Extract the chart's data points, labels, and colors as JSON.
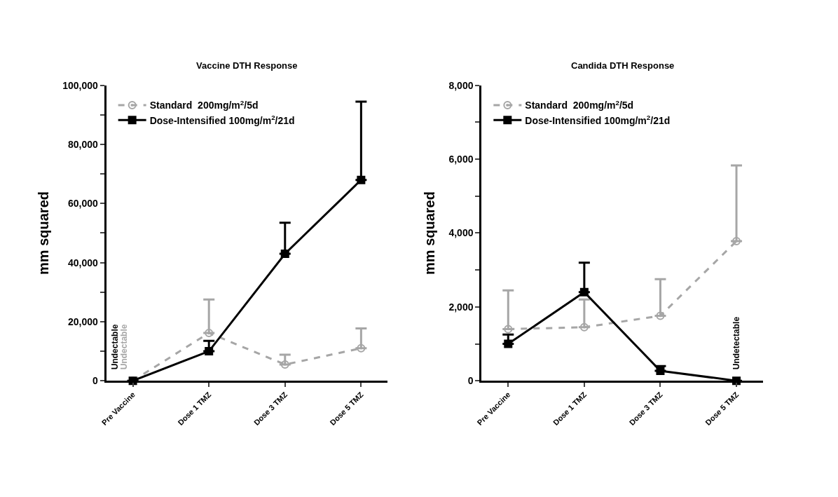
{
  "chart_data": [
    {
      "type": "line",
      "title": "Vaccine DTH Response",
      "ylabel": "mm squared",
      "categories": [
        "Pre Vaccine",
        "Dose 1 TMZ",
        "Dose 3 TMZ",
        "Dose 5 TMZ"
      ],
      "legend": "top left",
      "ylim": [
        0,
        100000
      ],
      "yticks": [
        {
          "value": 0,
          "label": "0"
        },
        {
          "value": 10000,
          "label": null
        },
        {
          "value": 20000,
          "label": "20,000"
        },
        {
          "value": 30000,
          "label": null
        },
        {
          "value": 40000,
          "label": "40,000"
        },
        {
          "value": 50000,
          "label": null
        },
        {
          "value": 60000,
          "label": "60,000"
        },
        {
          "value": 70000,
          "label": null
        },
        {
          "value": 80000,
          "label": "80,000"
        },
        {
          "value": 90000,
          "label": null
        },
        {
          "value": 100000,
          "label": "100,000"
        }
      ],
      "series": [
        {
          "name": "Standard  200mg/m$^{2}$/5d",
          "color": "#a6a6a6",
          "marker": "circle",
          "line_style": "dashed",
          "values": [
            0,
            16200,
            5500,
            11000
          ],
          "errors": [
            null,
            [
              16200,
              27500
            ],
            [
              5500,
              8800
            ],
            [
              11000,
              17700
            ]
          ]
        },
        {
          "name": "Dose-Intensified 100mg/m$^{2}$/21d",
          "color": "#000000",
          "marker": "square",
          "line_style": "solid",
          "values": [
            0,
            10000,
            43000,
            68000
          ],
          "errors": [
            null,
            [
              10000,
              13500
            ],
            [
              43000,
              53500
            ],
            [
              68000,
              94500
            ]
          ]
        }
      ],
      "annotations": [
        {
          "text": "Undectable",
          "x": "Pre Vaccine",
          "y": 0
        },
        {
          "text": "Undectable",
          "x": "Pre Vaccine",
          "y": 0
        }
      ]
    },
    {
      "type": "line",
      "title": "Candida DTH Response",
      "ylabel": "mm squared",
      "categories": [
        "Pre Vaccine",
        "Dose 1 TMZ",
        "Dose 3 TMZ",
        "Dose 5 TMZ"
      ],
      "legend": "top left",
      "ylim": [
        0,
        8000
      ],
      "yticks": [
        {
          "value": 0,
          "label": "0"
        },
        {
          "value": 1000,
          "label": null
        },
        {
          "value": 2000,
          "label": "2,000"
        },
        {
          "value": 3000,
          "label": null
        },
        {
          "value": 4000,
          "label": "4,000"
        },
        {
          "value": 5000,
          "label": null
        },
        {
          "value": 6000,
          "label": "6,000"
        },
        {
          "value": 7000,
          "label": null
        },
        {
          "value": 8000,
          "label": "8,000"
        }
      ],
      "series": [
        {
          "name": "Standard  200mg/m$^{2}$/5d",
          "color": "#a6a6a6",
          "marker": "circle",
          "line_style": "dashed",
          "values": [
            1400,
            1450,
            1760,
            3780
          ],
          "errors": [
            [
              1400,
              2450
            ],
            [
              1450,
              2200
            ],
            [
              1760,
              2750
            ],
            [
              3780,
              5830
            ]
          ]
        },
        {
          "name": "Dose-Intensified 100mg/m$^{2}$/21d",
          "color": "#000000",
          "marker": "square",
          "line_style": "solid",
          "values": [
            1000,
            2400,
            270,
            0
          ],
          "errors": [
            [
              1000,
              1250
            ],
            [
              2400,
              3200
            ],
            [
              270,
              400
            ],
            null
          ]
        }
      ],
      "annotations": [
        {
          "text": "Undetectable",
          "x": "Dose 5 TMZ",
          "y": 0
        }
      ]
    }
  ]
}
